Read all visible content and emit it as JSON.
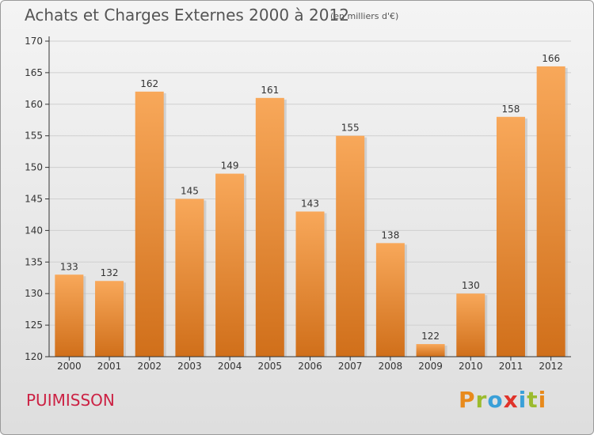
{
  "header": {
    "title": "Achats et Charges Externes 2000 à 2012",
    "subtitle": "(en milliers d'€)"
  },
  "footer": {
    "commune": "PUIMISSON",
    "logo_letters": [
      "P",
      "r",
      "o",
      "x",
      "i",
      "t",
      "i"
    ],
    "logo_colors": [
      "#e88a1c",
      "#9bbb2e",
      "#3aa0d8",
      "#e0332a",
      "#3aa0d8",
      "#9bbb2e",
      "#e88a1c"
    ]
  },
  "colors": {
    "bar_top": "#f8a85a",
    "bar_bottom": "#d06f1a",
    "axis": "#333333",
    "grid": "#cfcfcf",
    "commune_text": "#cc2244"
  },
  "chart_data": {
    "type": "bar",
    "categories": [
      "2000",
      "2001",
      "2002",
      "2003",
      "2004",
      "2005",
      "2006",
      "2007",
      "2008",
      "2009",
      "2010",
      "2011",
      "2012"
    ],
    "values": [
      133,
      132,
      162,
      145,
      149,
      161,
      143,
      155,
      138,
      122,
      130,
      158,
      166
    ],
    "title": "Achats et Charges Externes 2000 à 2012",
    "ylim": [
      120,
      170
    ],
    "yticks": [
      120,
      125,
      130,
      135,
      140,
      145,
      150,
      155,
      160,
      165,
      170
    ],
    "grid": true,
    "legend": "none"
  }
}
